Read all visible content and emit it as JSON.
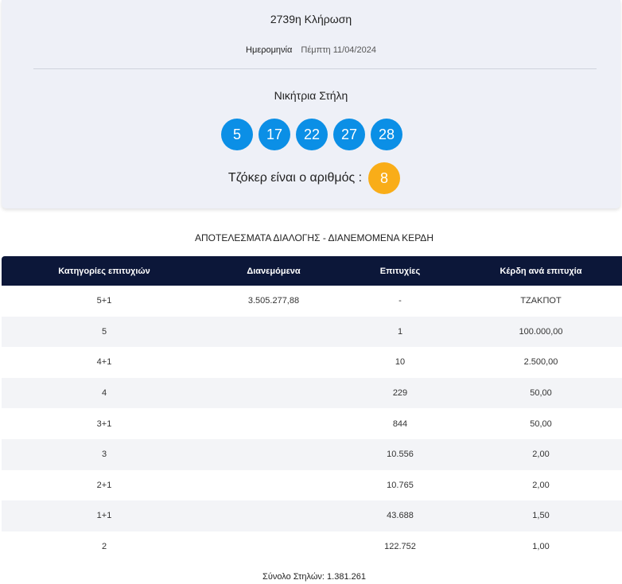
{
  "draw": {
    "title": "2739η Κλήρωση",
    "date_label": "Ημερομηνία",
    "date_value": "Πέμπτη 11/04/2024",
    "winning_label": "Νικήτρια Στήλη",
    "numbers": [
      "5",
      "17",
      "22",
      "27",
      "28"
    ],
    "joker_label": "Τζόκερ είναι ο αριθμός :",
    "joker_number": "8"
  },
  "results": {
    "title": "ΑΠΟΤΕΛΕΣΜΑΤΑ ΔΙΑΛΟΓΗΣ - ΔΙΑΝΕΜΟΜΕΝΑ ΚΕΡΔΗ",
    "headers": [
      "Κατηγορίες επιτυχιών",
      "Διανεμόμενα",
      "Επιτυχίες",
      "Κέρδη ανά επιτυχία"
    ],
    "rows": [
      {
        "category": "5+1",
        "distributed": "3.505.277,88",
        "winners": "-",
        "prize": "ΤΖΑΚΠΟΤ"
      },
      {
        "category": "5",
        "distributed": "",
        "winners": "1",
        "prize": "100.000,00"
      },
      {
        "category": "4+1",
        "distributed": "",
        "winners": "10",
        "prize": "2.500,00"
      },
      {
        "category": "4",
        "distributed": "",
        "winners": "229",
        "prize": "50,00"
      },
      {
        "category": "3+1",
        "distributed": "",
        "winners": "844",
        "prize": "50,00"
      },
      {
        "category": "3",
        "distributed": "",
        "winners": "10.556",
        "prize": "2,00"
      },
      {
        "category": "2+1",
        "distributed": "",
        "winners": "10.765",
        "prize": "2,00"
      },
      {
        "category": "1+1",
        "distributed": "",
        "winners": "43.688",
        "prize": "1,50"
      },
      {
        "category": "2",
        "distributed": "",
        "winners": "122.752",
        "prize": "1,00"
      }
    ],
    "total_label": "Σύνολο Στηλών: 1.381.261"
  },
  "colors": {
    "ball": "#0b8fe6",
    "joker_ball": "#f9ad18",
    "table_header": "#0c1739",
    "card_background": "#eef0f7"
  }
}
